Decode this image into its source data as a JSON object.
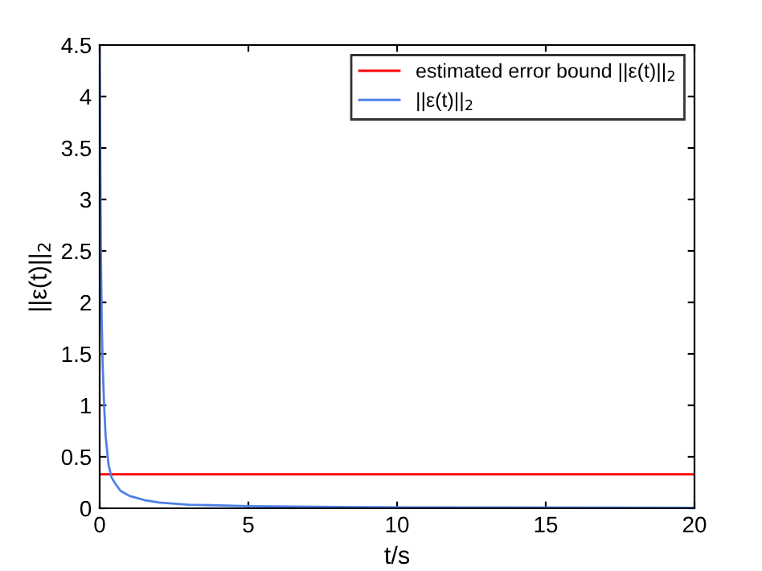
{
  "chart_data": {
    "type": "line",
    "xlabel": "t/s",
    "ylabel": "||ε(t)||$_{2}$",
    "xlim": [
      0,
      20
    ],
    "ylim": [
      0,
      4.5
    ],
    "xticks": [
      0,
      5,
      10,
      15,
      20
    ],
    "yticks": [
      0,
      0.5,
      1,
      1.5,
      2,
      2.5,
      3,
      3.5,
      4,
      4.5
    ],
    "grid": false,
    "legend": "top right",
    "ref_lines": [
      {
        "axis": "y",
        "value": 0.33,
        "label": "estimated error bound ||ε(t)||$_{2}$",
        "color": "#ff0000"
      }
    ],
    "series": [
      {
        "name": "||ε(t)||$_{2}$",
        "color": "#4d7fe6",
        "x": [
          0,
          0.02,
          0.04,
          0.07,
          0.1,
          0.15,
          0.2,
          0.3,
          0.4,
          0.5,
          0.7,
          1,
          1.5,
          2,
          3,
          5,
          8,
          12,
          20
        ],
        "values": [
          4.5,
          3.5,
          2.5,
          1.8,
          1.4,
          1.0,
          0.7,
          0.42,
          0.3,
          0.25,
          0.17,
          0.12,
          0.08,
          0.055,
          0.035,
          0.02,
          0.012,
          0.008,
          0.005
        ]
      }
    ]
  }
}
